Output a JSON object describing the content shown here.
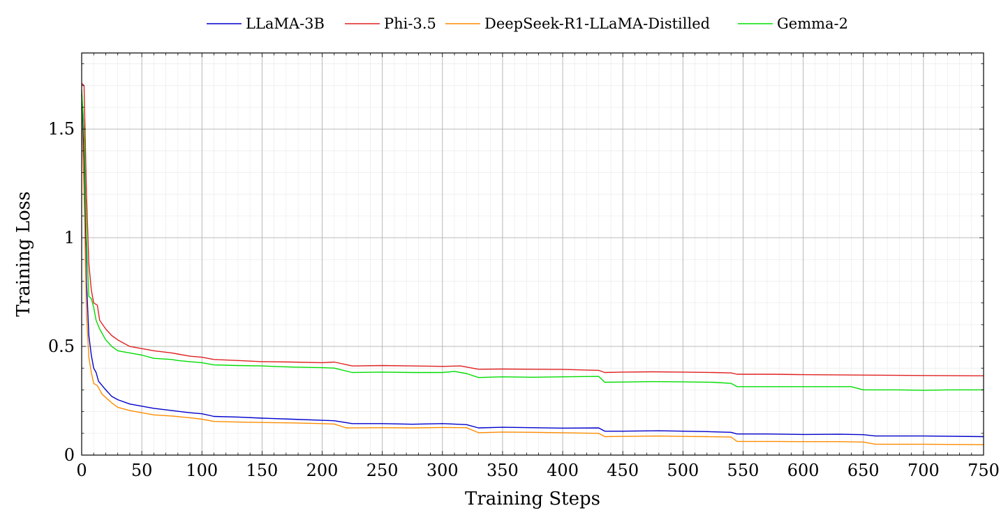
{
  "chart_data": {
    "type": "line",
    "title": "",
    "xlabel": "Training Steps",
    "ylabel": "Training Loss",
    "xlim": [
      0,
      750
    ],
    "ylim": [
      0,
      1.85
    ],
    "xticks": [
      0,
      50,
      100,
      150,
      200,
      250,
      300,
      350,
      400,
      450,
      500,
      550,
      600,
      650,
      700,
      750
    ],
    "yticks": [
      0,
      0.5,
      1,
      1.5
    ],
    "ytick_labels": [
      "0",
      "0.5",
      "1",
      "1.5"
    ],
    "grid": true,
    "legend_position": "top-center",
    "series": [
      {
        "name": "LLaMA-3B",
        "color": "#0000cc",
        "points": [
          [
            0,
            1.66
          ],
          [
            2,
            1.35
          ],
          [
            4,
            0.8
          ],
          [
            6,
            0.55
          ],
          [
            8,
            0.46
          ],
          [
            10,
            0.4
          ],
          [
            12,
            0.38
          ],
          [
            14,
            0.34
          ],
          [
            17,
            0.32
          ],
          [
            20,
            0.3
          ],
          [
            25,
            0.27
          ],
          [
            30,
            0.255
          ],
          [
            40,
            0.235
          ],
          [
            50,
            0.225
          ],
          [
            60,
            0.215
          ],
          [
            75,
            0.205
          ],
          [
            90,
            0.195
          ],
          [
            100,
            0.19
          ],
          [
            110,
            0.178
          ],
          [
            130,
            0.175
          ],
          [
            150,
            0.17
          ],
          [
            175,
            0.165
          ],
          [
            200,
            0.16
          ],
          [
            210,
            0.158
          ],
          [
            225,
            0.145
          ],
          [
            250,
            0.145
          ],
          [
            275,
            0.142
          ],
          [
            300,
            0.145
          ],
          [
            320,
            0.14
          ],
          [
            330,
            0.125
          ],
          [
            350,
            0.128
          ],
          [
            375,
            0.126
          ],
          [
            400,
            0.124
          ],
          [
            430,
            0.125
          ],
          [
            435,
            0.11
          ],
          [
            450,
            0.11
          ],
          [
            480,
            0.112
          ],
          [
            500,
            0.11
          ],
          [
            520,
            0.108
          ],
          [
            540,
            0.105
          ],
          [
            545,
            0.097
          ],
          [
            570,
            0.097
          ],
          [
            600,
            0.095
          ],
          [
            630,
            0.096
          ],
          [
            650,
            0.094
          ],
          [
            660,
            0.088
          ],
          [
            700,
            0.088
          ],
          [
            750,
            0.085
          ]
        ]
      },
      {
        "name": "Phi-3.5",
        "color": "#e02020",
        "points": [
          [
            0,
            1.71
          ],
          [
            2,
            1.7
          ],
          [
            4,
            1.2
          ],
          [
            6,
            0.88
          ],
          [
            8,
            0.76
          ],
          [
            10,
            0.7
          ],
          [
            13,
            0.69
          ],
          [
            15,
            0.62
          ],
          [
            20,
            0.58
          ],
          [
            25,
            0.55
          ],
          [
            30,
            0.53
          ],
          [
            40,
            0.5
          ],
          [
            50,
            0.49
          ],
          [
            60,
            0.48
          ],
          [
            75,
            0.47
          ],
          [
            80,
            0.465
          ],
          [
            90,
            0.455
          ],
          [
            100,
            0.45
          ],
          [
            110,
            0.44
          ],
          [
            130,
            0.435
          ],
          [
            150,
            0.43
          ],
          [
            175,
            0.428
          ],
          [
            200,
            0.425
          ],
          [
            210,
            0.428
          ],
          [
            225,
            0.41
          ],
          [
            250,
            0.412
          ],
          [
            275,
            0.41
          ],
          [
            300,
            0.408
          ],
          [
            315,
            0.41
          ],
          [
            330,
            0.395
          ],
          [
            350,
            0.396
          ],
          [
            375,
            0.395
          ],
          [
            400,
            0.394
          ],
          [
            430,
            0.39
          ],
          [
            435,
            0.38
          ],
          [
            450,
            0.382
          ],
          [
            475,
            0.383
          ],
          [
            500,
            0.382
          ],
          [
            525,
            0.38
          ],
          [
            540,
            0.378
          ],
          [
            545,
            0.372
          ],
          [
            575,
            0.372
          ],
          [
            600,
            0.37
          ],
          [
            650,
            0.368
          ],
          [
            700,
            0.366
          ],
          [
            750,
            0.365
          ]
        ]
      },
      {
        "name": "DeepSeek-R1-LLaMA-Distilled",
        "color": "#ff8c00",
        "points": [
          [
            0,
            1.6
          ],
          [
            2,
            1.2
          ],
          [
            4,
            0.65
          ],
          [
            6,
            0.45
          ],
          [
            8,
            0.38
          ],
          [
            10,
            0.33
          ],
          [
            13,
            0.32
          ],
          [
            17,
            0.28
          ],
          [
            20,
            0.265
          ],
          [
            25,
            0.24
          ],
          [
            30,
            0.22
          ],
          [
            40,
            0.205
          ],
          [
            50,
            0.195
          ],
          [
            60,
            0.185
          ],
          [
            75,
            0.18
          ],
          [
            90,
            0.172
          ],
          [
            100,
            0.165
          ],
          [
            110,
            0.155
          ],
          [
            130,
            0.152
          ],
          [
            150,
            0.15
          ],
          [
            175,
            0.148
          ],
          [
            200,
            0.145
          ],
          [
            210,
            0.143
          ],
          [
            220,
            0.125
          ],
          [
            250,
            0.126
          ],
          [
            275,
            0.125
          ],
          [
            300,
            0.127
          ],
          [
            320,
            0.126
          ],
          [
            330,
            0.103
          ],
          [
            350,
            0.106
          ],
          [
            375,
            0.105
          ],
          [
            400,
            0.103
          ],
          [
            430,
            0.1
          ],
          [
            435,
            0.085
          ],
          [
            450,
            0.086
          ],
          [
            480,
            0.088
          ],
          [
            500,
            0.086
          ],
          [
            520,
            0.085
          ],
          [
            540,
            0.083
          ],
          [
            545,
            0.063
          ],
          [
            575,
            0.063
          ],
          [
            600,
            0.062
          ],
          [
            630,
            0.062
          ],
          [
            650,
            0.06
          ],
          [
            660,
            0.05
          ],
          [
            700,
            0.05
          ],
          [
            750,
            0.048
          ]
        ]
      },
      {
        "name": "Gemma-2",
        "color": "#00dd00",
        "points": [
          [
            0,
            1.68
          ],
          [
            2,
            1.5
          ],
          [
            4,
            1.0
          ],
          [
            6,
            0.73
          ],
          [
            8,
            0.72
          ],
          [
            10,
            0.68
          ],
          [
            12,
            0.62
          ],
          [
            15,
            0.58
          ],
          [
            20,
            0.53
          ],
          [
            25,
            0.5
          ],
          [
            30,
            0.48
          ],
          [
            40,
            0.47
          ],
          [
            50,
            0.46
          ],
          [
            60,
            0.445
          ],
          [
            75,
            0.44
          ],
          [
            80,
            0.435
          ],
          [
            90,
            0.43
          ],
          [
            100,
            0.425
          ],
          [
            110,
            0.415
          ],
          [
            130,
            0.412
          ],
          [
            150,
            0.41
          ],
          [
            175,
            0.405
          ],
          [
            200,
            0.402
          ],
          [
            210,
            0.4
          ],
          [
            225,
            0.38
          ],
          [
            250,
            0.382
          ],
          [
            275,
            0.38
          ],
          [
            300,
            0.38
          ],
          [
            310,
            0.385
          ],
          [
            320,
            0.375
          ],
          [
            330,
            0.357
          ],
          [
            350,
            0.36
          ],
          [
            375,
            0.358
          ],
          [
            400,
            0.36
          ],
          [
            430,
            0.362
          ],
          [
            435,
            0.335
          ],
          [
            450,
            0.336
          ],
          [
            475,
            0.338
          ],
          [
            500,
            0.337
          ],
          [
            525,
            0.335
          ],
          [
            540,
            0.33
          ],
          [
            545,
            0.315
          ],
          [
            575,
            0.315
          ],
          [
            600,
            0.315
          ],
          [
            640,
            0.315
          ],
          [
            650,
            0.3
          ],
          [
            680,
            0.3
          ],
          [
            700,
            0.298
          ],
          [
            720,
            0.3
          ],
          [
            750,
            0.3
          ]
        ]
      }
    ]
  }
}
